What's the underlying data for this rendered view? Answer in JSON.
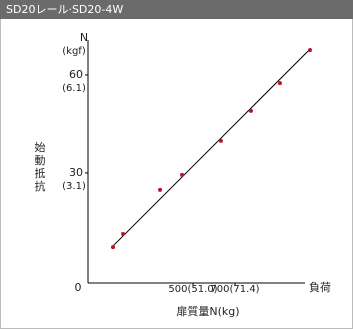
{
  "chart_data": {
    "type": "scatter",
    "title": "SD20レール·SD20-4W",
    "ylabel": "始動抵抗",
    "yunit": "N",
    "yunit2": "(kgf)",
    "xlabel": "扉質量N(kg)",
    "xend_label": "負荷",
    "origin_label": "0",
    "x": [
      119,
      167,
      343,
      448,
      633,
      776,
      914,
      1057
    ],
    "y": [
      7.3,
      11.3,
      24.8,
      29.4,
      39.8,
      49.0,
      57.5,
      67.6
    ],
    "color": "#c0102a",
    "fit": {
      "x": [
        114,
        1062
      ],
      "y": [
        7.3,
        68.2
      ],
      "color": "#000000"
    },
    "xlim": [
      0,
      1100
    ],
    "ylim": [
      -3.7,
      70.7
    ],
    "xticks": [
      {
        "value": 500,
        "label": "500(51.0)"
      },
      {
        "value": 700,
        "label": "700(71.4)"
      }
    ],
    "yticks": [
      30,
      60
    ],
    "ytick_sublabels": [
      "(3.1)",
      "(6.1)"
    ]
  }
}
